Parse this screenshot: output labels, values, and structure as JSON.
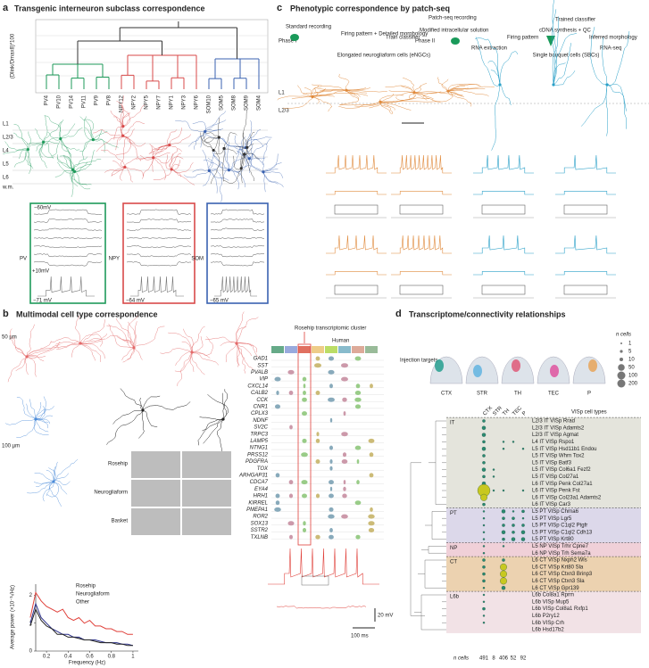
{
  "panel_a": {
    "label": "a",
    "title": "Transgenic interneuron subclass correspondence",
    "y_axis_label": "(Dlink/Dmax8)*100",
    "leaves": [
      "PV4",
      "PV10",
      "PV14",
      "PV11",
      "PV9",
      "PV8",
      "NPY12",
      "NPY2",
      "NPY5",
      "NPY7",
      "NPY1",
      "NPY3",
      "NPY6",
      "SOM10",
      "SOM5",
      "SOM8",
      "SOM9",
      "SOM4"
    ],
    "layers": [
      "L1",
      "L2/3",
      "L4",
      "L5",
      "L6"
    ],
    "white_matter": "w.m.",
    "groups": [
      {
        "name": "PV",
        "color": "#1e9a5a",
        "rest": "−71 mV"
      },
      {
        "name": "NPY",
        "color": "#d84a4a",
        "rest": "−64 mV"
      },
      {
        "name": "SOM",
        "color": "#3a62b0",
        "rest": "−65 mV"
      }
    ],
    "holding": "−60mV",
    "step": "+10mV"
  },
  "panel_c": {
    "label": "c",
    "title": "Phenotypic correspondence by patch-seq",
    "phase1": {
      "name": "Phase I",
      "recording": "Standard recording",
      "features": "Firing pattern + Detailed morphology",
      "classifier": "Train classifier"
    },
    "phase2": {
      "name": "Phase II",
      "recording": "Patch-seq recording",
      "solution": "Modified intracellular solution",
      "firing": "Firing pattern",
      "rna": "RNA extraction",
      "trained": "Trained classifier",
      "cdna": "cDNA synthesis + QC",
      "inferred": "Inferred morphology",
      "seq": "RNA-seq"
    },
    "engc": "Elongated neurogliaform cells (eNGCs)",
    "sbc": "Single bouquet cells (SBCs)",
    "layers": [
      "L1",
      "L2/3"
    ]
  },
  "panel_b": {
    "label": "b",
    "title": "Multimodal cell type correspondence",
    "scale_top": "50 µm",
    "scale_mid": "100 µm",
    "cell_types": [
      {
        "name": "Rosehip",
        "color": "#e0403a"
      },
      {
        "name": "Neurogliaform",
        "color": "#3a50b0"
      },
      {
        "name": "Basket",
        "color": "#777777"
      }
    ],
    "cluster_title": "Rosehip transcriptomic cluster",
    "species": "Human",
    "genes": [
      "GAD1",
      "SST",
      "PVALB",
      "VIP",
      "CXCL14",
      "CALB2",
      "CCK",
      "CNR1",
      "CPLX3",
      "NDNF",
      "SV2C",
      "TRPC3",
      "LAMP5",
      "NTNG1",
      "PRSS12",
      "PDGFRA",
      "TOX",
      "ARHGAP31",
      "CDCA7",
      "EYA4",
      "HRH1",
      "KIRREL",
      "PMEPA1",
      "ROR2",
      "SOX13",
      "SSTR2",
      "TXLNB"
    ],
    "power": {
      "x_label": "Frequency (Hz)",
      "y_label": "Average power (×10⁻³√Hz)",
      "xlim": [
        0.1,
        1.05
      ],
      "ylim": [
        0,
        2.4
      ],
      "xticks": [
        0.2,
        0.4,
        0.6,
        0.8,
        1
      ],
      "yticks": [
        0,
        1,
        2
      ],
      "x": [
        0.05,
        0.1,
        0.15,
        0.2,
        0.25,
        0.3,
        0.35,
        0.4,
        0.45,
        0.5,
        0.55,
        0.6,
        0.65,
        0.7,
        0.75,
        0.8,
        0.85,
        0.9,
        0.95,
        1.0
      ],
      "series": [
        {
          "name": "Rosehip",
          "color": "#e0403a",
          "values": [
            1.2,
            2.1,
            1.8,
            1.6,
            1.5,
            1.4,
            1.5,
            1.2,
            1.1,
            1.2,
            1.0,
            1.1,
            0.9,
            0.9,
            0.8,
            0.8,
            0.7,
            0.7,
            0.6,
            0.6
          ]
        },
        {
          "name": "Neurogliaform",
          "color": "#2a2f8a",
          "values": [
            1.0,
            1.7,
            1.2,
            1.0,
            0.8,
            0.7,
            0.6,
            0.6,
            0.5,
            0.5,
            0.4,
            0.4,
            0.4,
            0.35,
            0.3,
            0.3,
            0.3,
            0.25,
            0.25,
            0.2
          ]
        },
        {
          "name": "Other",
          "color": "#222222",
          "values": [
            0.9,
            1.5,
            1.1,
            0.9,
            0.8,
            0.6,
            0.6,
            0.5,
            0.5,
            0.45,
            0.4,
            0.4,
            0.35,
            0.3,
            0.3,
            0.3,
            0.25,
            0.25,
            0.2,
            0.2
          ]
        }
      ]
    },
    "trace_scale_v": "20 mV",
    "trace_scale_t": "100 ms"
  },
  "panel_d": {
    "label": "d",
    "title": "Transcriptome/connectivity relationships",
    "injection_label": "Injection targets",
    "targets": [
      {
        "name": "CTX",
        "color": "#1a9a8a"
      },
      {
        "name": "STR",
        "color": "#5ab0e0"
      },
      {
        "name": "TH",
        "color": "#e05070"
      },
      {
        "name": "TEC",
        "color": "#e04a9a"
      },
      {
        "name": "P",
        "color": "#e8a050"
      }
    ],
    "size_title": "n cells",
    "sizes": [
      1,
      5,
      10,
      50,
      100,
      200
    ],
    "types_title": "VISp cell types",
    "totals_label": "n cells",
    "totals": [
      491,
      8,
      406,
      52,
      92
    ],
    "groups": [
      {
        "name": "IT",
        "color": "#3a9a5a",
        "bg": "#e4e4dc",
        "rows": [
          {
            "label": "L2/3 IT VISp Rrad",
            "counts": [
              5,
              null,
              null,
              null,
              null
            ]
          },
          {
            "label": "L2/3 IT VISp Adamts2",
            "counts": [
              10,
              null,
              null,
              null,
              null
            ]
          },
          {
            "label": "L2/3 IT VISp Agmat",
            "counts": [
              10,
              null,
              null,
              null,
              null
            ]
          },
          {
            "label": "L4 IT VISp Rspo1",
            "counts": [
              5,
              null,
              1,
              1,
              null
            ]
          },
          {
            "label": "L5 IT VISp Hsd11b1 Endou",
            "counts": [
              10,
              null,
              1,
              null,
              1
            ]
          },
          {
            "label": "L5 IT VISp Whrn Tox2",
            "counts": [
              5,
              null,
              null,
              null,
              null
            ]
          },
          {
            "label": "L5 IT VISp Batf3",
            "counts": [
              5,
              null,
              null,
              null,
              null
            ]
          },
          {
            "label": "L5 IT VISp Col6a1 Fezf2",
            "counts": [
              10,
              1,
              null,
              null,
              null
            ]
          },
          {
            "label": "L5 IT VISp Col27a1",
            "counts": [
              5,
              1,
              null,
              null,
              null
            ]
          },
          {
            "label": "L6 IT VISp Penk Col27a1",
            "counts": [
              10,
              null,
              null,
              null,
              null
            ]
          },
          {
            "label": "L6 IT VISp Penk Fst",
            "counts": [
              200,
              1,
              1,
              null,
              1
            ]
          },
          {
            "label": "L6 IT VISp Col23a1 Adamts2",
            "counts": [
              50,
              null,
              null,
              null,
              null
            ]
          },
          {
            "label": "L6 IT VISp Car3",
            "counts": [
              5,
              null,
              null,
              null,
              null
            ]
          }
        ]
      },
      {
        "name": "PT",
        "color": "#2a8a6a",
        "bg": "#dcd8ea",
        "rows": [
          {
            "label": "L5 PT VISp Chrna6",
            "counts": [
              1,
              null,
              10,
              1,
              5
            ]
          },
          {
            "label": "L5 PT VISp Lgr5",
            "counts": [
              1,
              null,
              5,
              5,
              1
            ]
          },
          {
            "label": "L5 PT VISp C1ql2 Ptgfr",
            "counts": [
              1,
              null,
              5,
              5,
              5
            ]
          },
          {
            "label": "L5 PT VISp C1ql2 Cdh13",
            "counts": [
              1,
              null,
              10,
              5,
              10
            ]
          },
          {
            "label": "L5 PT VISp Krt80",
            "counts": [
              1,
              null,
              5,
              10,
              10
            ]
          }
        ]
      },
      {
        "name": "NP",
        "color": "#c0507a",
        "bg": "#f0d0d8",
        "rows": [
          {
            "label": "L5 NP VISp Trhr Cpne7",
            "counts": [
              1,
              null,
              1,
              null,
              null
            ]
          },
          {
            "label": "L6 NP VISp Trh Sema7a",
            "counts": [
              1,
              null,
              null,
              null,
              null
            ]
          }
        ]
      },
      {
        "name": "CT",
        "color": "#b07020",
        "bg": "#ecd2b0",
        "rows": [
          {
            "label": "L6 CT VISp Nxph2 Wls",
            "counts": [
              5,
              null,
              5,
              null,
              null
            ]
          },
          {
            "label": "L6 CT VISp Krt80 Sla",
            "counts": [
              5,
              null,
              50,
              null,
              null
            ]
          },
          {
            "label": "L6 CT VISp Ctxn3 Brinp3",
            "counts": [
              5,
              null,
              50,
              null,
              null
            ]
          },
          {
            "label": "L6 CT VISp Ctxn3 Sla",
            "counts": [
              5,
              null,
              50,
              null,
              null
            ]
          },
          {
            "label": "L6 CT VISp Gpr139",
            "counts": [
              1,
              null,
              10,
              null,
              null
            ]
          }
        ]
      },
      {
        "name": "L6b",
        "color": "#3a6aa0",
        "bg": "#f2e2e6",
        "rows": [
          {
            "label": "L6b Col8a1 Rprm",
            "counts": [
              1,
              null,
              null,
              null,
              null
            ]
          },
          {
            "label": "L6b VISp Mup5",
            "counts": [
              1,
              null,
              null,
              null,
              null
            ]
          },
          {
            "label": "L6b VISp Col8a1 Rxfp1",
            "counts": [
              5,
              null,
              null,
              null,
              null
            ]
          },
          {
            "label": "L6b P2ry12",
            "counts": [
              1,
              null,
              null,
              null,
              null
            ]
          },
          {
            "label": "L6b VISp Crh",
            "counts": [
              1,
              null,
              null,
              null,
              null
            ]
          },
          {
            "label": "L6b Hsd17b2",
            "counts": [
              null,
              null,
              null,
              null,
              null
            ]
          }
        ]
      }
    ]
  }
}
